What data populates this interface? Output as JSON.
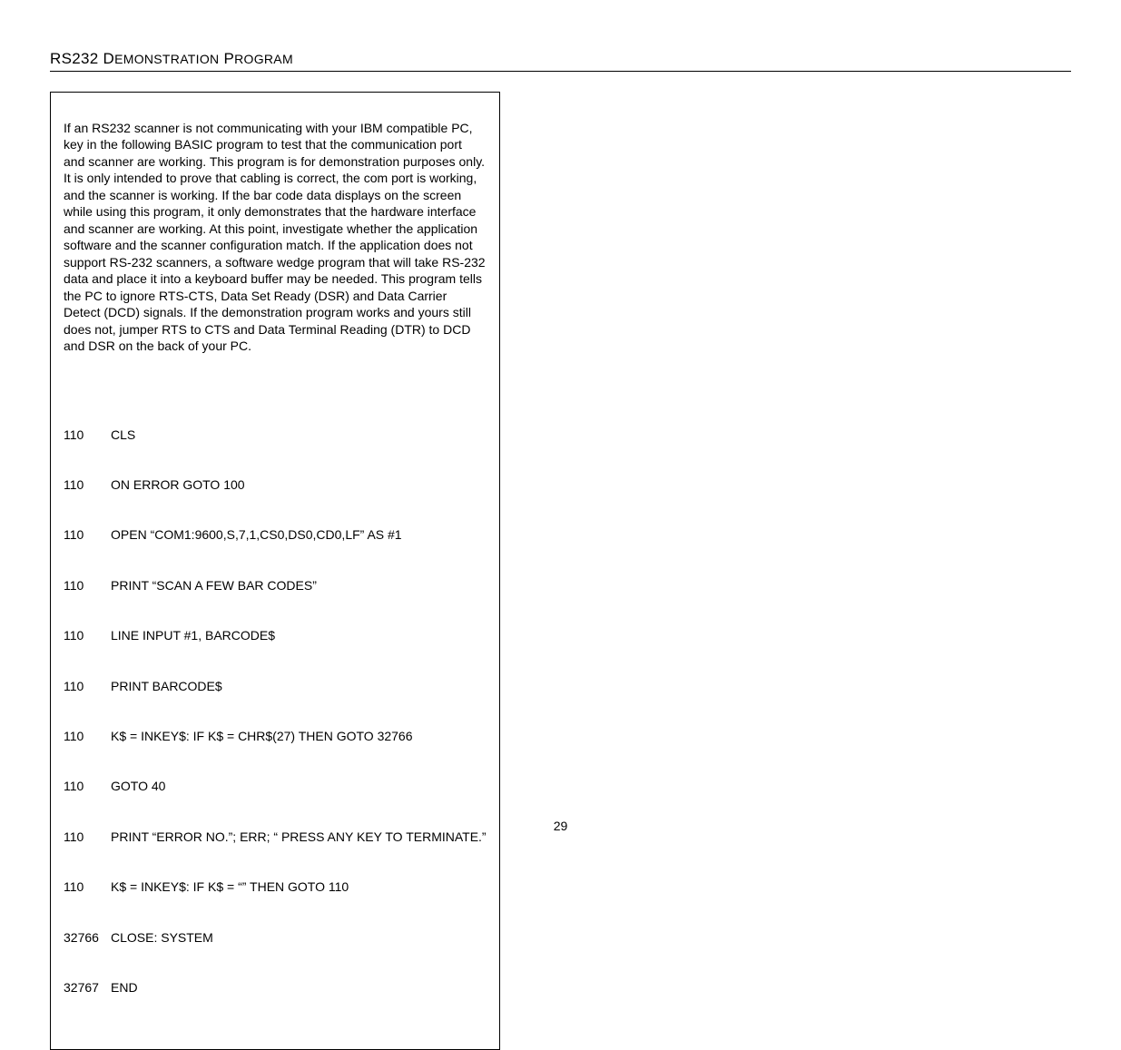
{
  "heading": {
    "prefix": "RS232 D",
    "suffix": "EMONSTRATION",
    "prefix2": " P",
    "suffix2": "ROGRAM"
  },
  "intro": "If an RS232 scanner is not communicating with your IBM compatible PC, key in the following BASIC program to test that the communication port and scanner are working.  This program is for demonstration purposes only.  It is only intended to prove that cabling is correct, the com port is working, and the scanner is working.  If the bar code data displays on the screen while using this program, it only demonstrates that the hardware interface and scanner are working.  At this point, investigate whether the application software and the scanner configuration match.  If the application does not support RS-232 scanners, a software wedge program that will take RS-232 data and place it into a keyboard buffer may be needed.  This program tells the PC to ignore RTS-CTS, Data Set Ready (DSR) and Data Carrier Detect (DCD) signals.  If the demonstration program works and yours still does not, jumper RTS to CTS and Data Terminal Reading (DTR) to DCD and DSR on the back of your PC.",
  "code": [
    {
      "num": "110",
      "text": "CLS"
    },
    {
      "num": "110",
      "text": "ON ERROR GOTO 100"
    },
    {
      "num": "110",
      "text": "OPEN “COM1:9600,S,7,1,CS0,DS0,CD0,LF” AS #1"
    },
    {
      "num": "110",
      "text": "PRINT “SCAN A FEW BAR CODES”"
    },
    {
      "num": "110",
      "text": "LINE INPUT #1, BARCODE$"
    },
    {
      "num": "110",
      "text": "PRINT BARCODE$"
    },
    {
      "num": "110",
      "text": "K$ = INKEY$: IF K$ = CHR$(27) THEN GOTO 32766"
    },
    {
      "num": "110",
      "text": "GOTO 40"
    },
    {
      "num": "110",
      "text": "PRINT “ERROR NO.”; ERR; “ PRESS ANY KEY TO TERMINATE.”"
    },
    {
      "num": "110",
      "text": "K$ = INKEY$: IF K$ = “” THEN GOTO 110"
    },
    {
      "num": "32766",
      "text": "CLOSE: SYSTEM"
    },
    {
      "num": "32767",
      "text": "END"
    }
  ],
  "page_number": "29"
}
